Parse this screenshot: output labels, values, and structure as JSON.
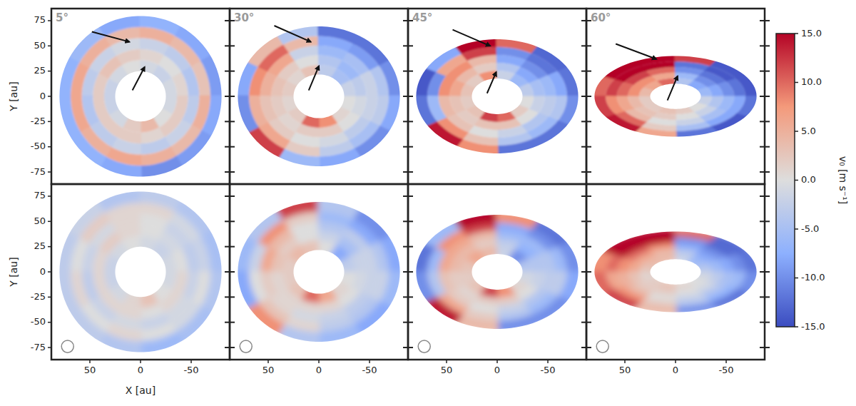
{
  "chart_data": {
    "type": "heatmap",
    "x_label": "X [au]",
    "y_label": "Y [au]",
    "xlim": [
      88,
      -88
    ],
    "ylim": [
      -87,
      87
    ],
    "xticks": [
      50,
      0,
      -50
    ],
    "yticks": [
      -75,
      -50,
      -25,
      0,
      25,
      50,
      75
    ],
    "r_edges": [
      25,
      36,
      47,
      58,
      69,
      80
    ],
    "phi_edges": [
      0,
      30,
      60,
      90,
      120,
      150,
      180,
      210,
      240,
      270,
      300,
      330,
      360
    ],
    "colorbar": {
      "label": "v₀ [m s⁻¹]",
      "range": [
        -15,
        15
      ],
      "ticks": [
        {
          "value": -15,
          "label": "-15.0"
        },
        {
          "value": -10,
          "label": "-10.0"
        },
        {
          "value": -5,
          "label": "-5.0"
        },
        {
          "value": 0,
          "label": "0.0"
        },
        {
          "value": 5,
          "label": "5.0"
        },
        {
          "value": 10,
          "label": "10.0"
        },
        {
          "value": 15,
          "label": "15.0"
        }
      ]
    },
    "columns": [
      {
        "title": "5°",
        "inclination": 5,
        "maps": [
          [
            [
              -2,
              -1,
              0,
              -1,
              -2,
              -1,
              -1,
              0,
              4,
              2,
              -1,
              -2
            ],
            [
              2,
              3,
              2,
              1,
              0,
              1,
              2,
              2,
              1,
              2,
              2,
              2
            ],
            [
              -3,
              -2,
              -1,
              -2,
              -3,
              -4,
              -3,
              -2,
              -3,
              -2,
              -3,
              -4
            ],
            [
              6,
              5,
              4,
              5,
              4,
              3,
              5,
              4,
              5,
              6,
              5,
              6
            ],
            [
              -7,
              -6,
              -8,
              -7,
              -8,
              -9,
              -8,
              -9,
              -10,
              -8,
              -7,
              -7
            ]
          ],
          [
            [
              -2,
              -1,
              0,
              -1,
              -2,
              -1,
              -1,
              0,
              3,
              1,
              -1,
              -2
            ],
            [
              1,
              2,
              1,
              0,
              -1,
              0,
              1,
              1,
              0,
              1,
              1,
              1
            ],
            [
              -2,
              -1,
              1,
              0,
              -2,
              -3,
              -2,
              -1,
              -2,
              -1,
              -2,
              -3
            ],
            [
              0,
              2,
              1,
              1,
              -1,
              -2,
              0,
              -1,
              0,
              1,
              0,
              1
            ],
            [
              -3,
              -2,
              -4,
              -3,
              -4,
              -5,
              -4,
              -5,
              -6,
              -4,
              -3,
              -3
            ]
          ]
        ]
      },
      {
        "title": "30°",
        "inclination": 30,
        "maps": [
          [
            [
              2,
              1,
              3,
              -3,
              -5,
              -2,
              0,
              1,
              8,
              10,
              2,
              1
            ],
            [
              3,
              2,
              0,
              -4,
              -6,
              -3,
              -1,
              0,
              2,
              2,
              1,
              2
            ],
            [
              5,
              6,
              -2,
              -6,
              -5,
              -2,
              -2,
              -3,
              -1,
              0,
              2,
              3
            ],
            [
              8,
              10,
              4,
              -8,
              -9,
              -4,
              -3,
              -5,
              -3,
              2,
              6,
              5
            ],
            [
              -8,
              4,
              -4,
              -12,
              -12,
              -10,
              -8,
              -10,
              -8,
              -6,
              12,
              -10
            ]
          ],
          [
            [
              2,
              4,
              3,
              0,
              -8,
              -3,
              0,
              1,
              6,
              10,
              3,
              2
            ],
            [
              3,
              2,
              0,
              -2,
              -5,
              -2,
              -1,
              0,
              1,
              1,
              1,
              1
            ],
            [
              6,
              4,
              0,
              -4,
              -3,
              -2,
              -2,
              -3,
              -2,
              -1,
              1,
              2
            ],
            [
              -2,
              8,
              2,
              -6,
              -8,
              -4,
              -2,
              -4,
              -3,
              1,
              3,
              0
            ],
            [
              -6,
              -4,
              12,
              -4,
              -10,
              -8,
              -6,
              -8,
              -6,
              -4,
              8,
              -8
            ]
          ]
        ]
      },
      {
        "title": "45°",
        "inclination": 45,
        "maps": [
          [
            [
              3,
              2,
              8,
              -2,
              -6,
              -3,
              0,
              2,
              10,
              12,
              3,
              2
            ],
            [
              6,
              4,
              2,
              -4,
              -8,
              -5,
              -2,
              0,
              3,
              3,
              2,
              3
            ],
            [
              8,
              8,
              4,
              -8,
              -10,
              -6,
              -3,
              -4,
              -2,
              0,
              3,
              4
            ],
            [
              -10,
              6,
              12,
              -10,
              -12,
              -8,
              -4,
              -6,
              -4,
              3,
              8,
              -6
            ],
            [
              -14,
              -8,
              15,
              10,
              -13,
              -12,
              -10,
              -12,
              -12,
              8,
              14,
              -12
            ]
          ],
          [
            [
              3,
              6,
              4,
              -2,
              -10,
              -4,
              -1,
              1,
              8,
              12,
              3,
              2
            ],
            [
              4,
              4,
              2,
              -3,
              -7,
              -4,
              -2,
              0,
              2,
              2,
              1,
              2
            ],
            [
              6,
              6,
              4,
              -6,
              -6,
              -4,
              -3,
              -4,
              -2,
              0,
              2,
              3
            ],
            [
              -6,
              8,
              12,
              -8,
              -10,
              -6,
              -3,
              -6,
              -4,
              2,
              6,
              -4
            ],
            [
              -12,
              -6,
              15,
              8,
              -12,
              -10,
              -8,
              -10,
              -10,
              4,
              14,
              -10
            ]
          ]
        ]
      },
      {
        "title": "60°",
        "inclination": 60,
        "maps": [
          [
            [
              4,
              6,
              10,
              -4,
              -8,
              -6,
              -2,
              0,
              2,
              3,
              2,
              2
            ],
            [
              8,
              8,
              6,
              -6,
              -10,
              -8,
              -4,
              -2,
              0,
              2,
              3,
              4
            ],
            [
              10,
              12,
              10,
              -10,
              -12,
              -10,
              -6,
              -5,
              -2,
              0,
              4,
              6
            ],
            [
              12,
              15,
              15,
              -12,
              -14,
              -12,
              -8,
              -8,
              -5,
              2,
              10,
              8
            ],
            [
              10,
              15,
              15,
              12,
              -14,
              -14,
              -12,
              -14,
              -12,
              6,
              14,
              12
            ]
          ],
          [
            [
              3,
              4,
              4,
              -2,
              -6,
              -4,
              -1,
              0,
              1,
              3,
              2,
              1
            ],
            [
              6,
              6,
              4,
              -4,
              -8,
              -6,
              -3,
              -1,
              0,
              2,
              2,
              3
            ],
            [
              8,
              10,
              8,
              -8,
              -10,
              -8,
              -5,
              -4,
              -2,
              0,
              4,
              5
            ],
            [
              10,
              15,
              15,
              -10,
              -13,
              -10,
              -6,
              -7,
              -4,
              2,
              8,
              6
            ],
            [
              8,
              15,
              15,
              10,
              -13,
              -12,
              -10,
              -12,
              -10,
              4,
              12,
              10
            ]
          ]
        ]
      }
    ]
  }
}
